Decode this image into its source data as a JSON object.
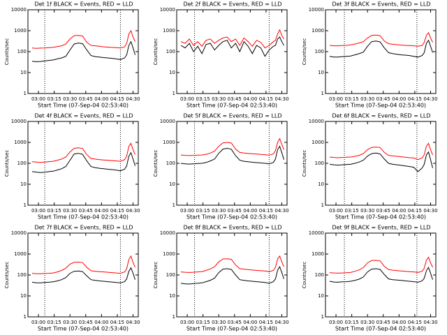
{
  "chart_data": [
    {
      "type": "line",
      "title": "Det 1f BLACK = Events, RED = LLD",
      "xlabel": "Start Time (07-Sep-04 02:53:40)",
      "ylabel": "Counts/sec",
      "x": [
        "02:54",
        "02:58",
        "03:02",
        "03:06",
        "03:10",
        "03:14",
        "03:18",
        "03:22",
        "03:26",
        "03:30",
        "03:34",
        "03:38",
        "03:42",
        "03:46",
        "03:50",
        "03:54",
        "03:58",
        "04:02",
        "04:06",
        "04:10",
        "04:14",
        "04:18",
        "04:22",
        "04:24",
        "04:26",
        "04:28",
        "04:30",
        "04:32"
      ],
      "series": [
        {
          "color": "#000000",
          "values": [
            35,
            33,
            34,
            36,
            38,
            40,
            45,
            50,
            60,
            120,
            230,
            260,
            240,
            120,
            65,
            58,
            55,
            52,
            50,
            48,
            45,
            42,
            50,
            70,
            200,
            300,
            150,
            70
          ]
        },
        {
          "color": "#ff0000",
          "values": [
            150,
            145,
            148,
            150,
            155,
            160,
            175,
            190,
            230,
            400,
            580,
            600,
            560,
            280,
            200,
            190,
            180,
            170,
            165,
            160,
            155,
            150,
            170,
            250,
            700,
            1000,
            500,
            300
          ]
        }
      ],
      "xlim": [
        "02:50",
        "04:35"
      ],
      "xticks": [
        "03:00",
        "03:15",
        "03:30",
        "03:45",
        "04:00",
        "04:15",
        "04:30"
      ],
      "ylim": [
        1,
        10000
      ],
      "yticks": [
        1,
        10,
        100,
        1000,
        10000
      ],
      "log": true,
      "markers": [
        "03:06",
        "04:18"
      ]
    },
    {
      "type": "line",
      "title": "Det 2f BLACK = Events, RED = LLD",
      "xlabel": "Start Time (07-Sep-04 02:53:40)",
      "ylabel": "Counts/sec",
      "x": [
        "02:54",
        "02:58",
        "03:02",
        "03:06",
        "03:10",
        "03:14",
        "03:18",
        "03:22",
        "03:26",
        "03:30",
        "03:34",
        "03:38",
        "03:42",
        "03:46",
        "03:50",
        "03:54",
        "03:58",
        "04:02",
        "04:06",
        "04:10",
        "04:14",
        "04:18",
        "04:22",
        "04:24",
        "04:26",
        "04:28",
        "04:30",
        "04:32"
      ],
      "series": [
        {
          "color": "#000000",
          "values": [
            200,
            150,
            250,
            100,
            180,
            80,
            220,
            250,
            120,
            200,
            300,
            350,
            150,
            250,
            100,
            300,
            180,
            80,
            200,
            150,
            60,
            120,
            180,
            200,
            400,
            500,
            300,
            200
          ]
        },
        {
          "color": "#ff0000",
          "values": [
            300,
            250,
            400,
            200,
            300,
            180,
            350,
            400,
            250,
            350,
            450,
            500,
            300,
            400,
            200,
            450,
            300,
            180,
            350,
            280,
            150,
            200,
            300,
            350,
            700,
            1100,
            600,
            400
          ]
        }
      ],
      "xlim": [
        "02:50",
        "04:35"
      ],
      "xticks": [
        "03:00",
        "03:15",
        "03:30",
        "03:45",
        "04:00",
        "04:15",
        "04:30"
      ],
      "ylim": [
        1,
        10000
      ],
      "yticks": [
        1,
        10,
        100,
        1000,
        10000
      ],
      "log": true,
      "markers": [
        "03:07",
        "04:18"
      ]
    },
    {
      "type": "line",
      "title": "Det 3f BLACK = Events, RED = LLD",
      "xlabel": "Start Time (07-Sep-04 02:53:40)",
      "ylabel": "Counts/sec",
      "x": [
        "02:54",
        "02:58",
        "03:02",
        "03:06",
        "03:10",
        "03:14",
        "03:18",
        "03:22",
        "03:26",
        "03:30",
        "03:34",
        "03:38",
        "03:42",
        "03:46",
        "03:50",
        "03:54",
        "03:58",
        "04:02",
        "04:06",
        "04:10",
        "04:14",
        "04:18",
        "04:22",
        "04:24",
        "04:26",
        "04:28",
        "04:30",
        "04:32"
      ],
      "series": [
        {
          "color": "#000000",
          "values": [
            60,
            55,
            55,
            58,
            60,
            62,
            70,
            80,
            95,
            180,
            300,
            320,
            290,
            150,
            90,
            80,
            75,
            70,
            68,
            65,
            60,
            55,
            65,
            90,
            250,
            350,
            180,
            90
          ]
        },
        {
          "color": "#ff0000",
          "values": [
            200,
            190,
            190,
            195,
            200,
            210,
            230,
            260,
            300,
            450,
            600,
            620,
            580,
            320,
            240,
            225,
            215,
            205,
            200,
            195,
            190,
            180,
            200,
            280,
            600,
            800,
            450,
            280
          ]
        }
      ],
      "xlim": [
        "02:50",
        "04:35"
      ],
      "xticks": [
        "03:00",
        "03:15",
        "03:30",
        "03:45",
        "04:00",
        "04:15",
        "04:30"
      ],
      "ylim": [
        1,
        10000
      ],
      "yticks": [
        1,
        10,
        100,
        1000,
        10000
      ],
      "log": true,
      "markers": [
        "03:08",
        "04:17"
      ]
    },
    {
      "type": "line",
      "title": "Det 4f BLACK = Events, RED = LLD",
      "xlabel": "Start Time (07-Sep-04 02:53:40)",
      "ylabel": "Counts/sec",
      "x": [
        "02:54",
        "02:58",
        "03:02",
        "03:06",
        "03:10",
        "03:14",
        "03:18",
        "03:22",
        "03:26",
        "03:30",
        "03:34",
        "03:38",
        "03:42",
        "03:46",
        "03:50",
        "03:54",
        "03:58",
        "04:02",
        "04:06",
        "04:10",
        "04:14",
        "04:18",
        "04:22",
        "04:24",
        "04:26",
        "04:28",
        "04:30",
        "04:32"
      ],
      "series": [
        {
          "color": "#000000",
          "values": [
            40,
            38,
            36,
            38,
            40,
            42,
            48,
            55,
            70,
            140,
            280,
            300,
            270,
            130,
            70,
            62,
            58,
            55,
            52,
            50,
            47,
            44,
            52,
            75,
            220,
            320,
            160,
            75
          ]
        },
        {
          "color": "#ff0000",
          "values": [
            120,
            115,
            110,
            115,
            120,
            125,
            140,
            160,
            200,
            350,
            520,
            550,
            510,
            260,
            170,
            160,
            150,
            145,
            140,
            135,
            130,
            125,
            150,
            220,
            650,
            900,
            450,
            260
          ]
        }
      ],
      "xlim": [
        "02:50",
        "04:35"
      ],
      "xticks": [
        "03:00",
        "03:15",
        "03:30",
        "03:45",
        "04:00",
        "04:15",
        "04:30"
      ],
      "ylim": [
        1,
        10000
      ],
      "yticks": [
        1,
        10,
        100,
        1000,
        10000
      ],
      "log": true,
      "markers": [
        "03:06",
        "04:18"
      ]
    },
    {
      "type": "line",
      "title": "Det 5f BLACK = Events, RED = LLD",
      "xlabel": "Start Time (07-Sep-04 02:53:40)",
      "ylabel": "Counts/sec",
      "x": [
        "02:54",
        "02:58",
        "03:02",
        "03:06",
        "03:10",
        "03:14",
        "03:18",
        "03:22",
        "03:26",
        "03:30",
        "03:34",
        "03:38",
        "03:42",
        "03:46",
        "03:50",
        "03:54",
        "03:58",
        "04:02",
        "04:06",
        "04:10",
        "04:14",
        "04:18",
        "04:22",
        "04:24",
        "04:26",
        "04:28",
        "04:30",
        "04:32"
      ],
      "series": [
        {
          "color": "#000000",
          "values": [
            100,
            95,
            92,
            95,
            98,
            100,
            110,
            130,
            160,
            300,
            480,
            520,
            470,
            230,
            140,
            125,
            118,
            112,
            108,
            104,
            100,
            95,
            110,
            160,
            450,
            650,
            320,
            150
          ]
        },
        {
          "color": "#ff0000",
          "values": [
            250,
            240,
            235,
            240,
            245,
            250,
            270,
            310,
            380,
            650,
            950,
            1000,
            930,
            480,
            330,
            310,
            295,
            285,
            275,
            265,
            255,
            245,
            280,
            400,
            1000,
            1500,
            800,
            450
          ]
        }
      ],
      "xlim": [
        "02:50",
        "04:35"
      ],
      "xticks": [
        "03:00",
        "03:15",
        "03:30",
        "03:45",
        "04:00",
        "04:15",
        "04:30"
      ],
      "ylim": [
        1,
        10000
      ],
      "yticks": [
        1,
        10,
        100,
        1000,
        10000
      ],
      "log": true,
      "markers": [
        "03:07",
        "04:18"
      ]
    },
    {
      "type": "line",
      "title": "Det 6f BLACK = Events, RED = LLD",
      "xlabel": "Start Time (07-Sep-04 02:53:40)",
      "ylabel": "Counts/sec",
      "x": [
        "02:54",
        "02:58",
        "03:02",
        "03:06",
        "03:10",
        "03:14",
        "03:18",
        "03:22",
        "03:26",
        "03:30",
        "03:34",
        "03:38",
        "03:42",
        "03:46",
        "03:50",
        "03:54",
        "03:58",
        "04:02",
        "04:06",
        "04:10",
        "04:14",
        "04:18",
        "04:22",
        "04:24",
        "04:26",
        "04:28",
        "04:30",
        "04:32"
      ],
      "series": [
        {
          "color": "#000000",
          "values": [
            90,
            85,
            82,
            85,
            88,
            90,
            100,
            115,
            140,
            220,
            290,
            310,
            280,
            160,
            100,
            90,
            85,
            80,
            75,
            70,
            65,
            40,
            60,
            90,
            250,
            350,
            150,
            60
          ]
        },
        {
          "color": "#ff0000",
          "values": [
            200,
            190,
            185,
            190,
            195,
            200,
            215,
            240,
            290,
            450,
            580,
            600,
            570,
            330,
            240,
            225,
            215,
            205,
            195,
            185,
            180,
            150,
            180,
            260,
            650,
            900,
            450,
            250
          ]
        }
      ],
      "xlim": [
        "02:50",
        "04:35"
      ],
      "xticks": [
        "03:00",
        "03:15",
        "03:30",
        "03:45",
        "04:00",
        "04:15",
        "04:30"
      ],
      "ylim": [
        1,
        10000
      ],
      "yticks": [
        1,
        10,
        100,
        1000,
        10000
      ],
      "log": true,
      "markers": [
        "03:08",
        "04:17"
      ]
    },
    {
      "type": "line",
      "title": "Det 7f BLACK = Events, RED = LLD",
      "xlabel": "Start Time (07-Sep-04 02:53:40)",
      "ylabel": "Counts/sec",
      "x": [
        "02:54",
        "02:58",
        "03:02",
        "03:06",
        "03:10",
        "03:14",
        "03:18",
        "03:22",
        "03:26",
        "03:30",
        "03:34",
        "03:38",
        "03:42",
        "03:46",
        "03:50",
        "03:54",
        "03:58",
        "04:02",
        "04:06",
        "04:10",
        "04:14",
        "04:18",
        "04:22",
        "04:24",
        "04:26",
        "04:28",
        "04:30",
        "04:32"
      ],
      "series": [
        {
          "color": "#000000",
          "values": [
            45,
            42,
            42,
            44,
            45,
            47,
            52,
            60,
            75,
            120,
            150,
            155,
            145,
            90,
            60,
            55,
            52,
            50,
            48,
            46,
            44,
            42,
            48,
            65,
            150,
            220,
            120,
            60
          ]
        },
        {
          "color": "#ff0000",
          "values": [
            120,
            115,
            115,
            118,
            120,
            125,
            140,
            165,
            210,
            330,
            400,
            410,
            390,
            230,
            160,
            150,
            145,
            140,
            135,
            130,
            125,
            120,
            140,
            200,
            550,
            800,
            400,
            230
          ]
        }
      ],
      "xlim": [
        "02:50",
        "04:35"
      ],
      "xticks": [
        "03:00",
        "03:15",
        "03:30",
        "03:45",
        "04:00",
        "04:15",
        "04:30"
      ],
      "ylim": [
        1,
        10000
      ],
      "yticks": [
        1,
        10,
        100,
        1000,
        10000
      ],
      "log": true,
      "markers": [
        "03:06",
        "04:18"
      ]
    },
    {
      "type": "line",
      "title": "Det 8f BLACK = Events, RED = LLD",
      "xlabel": "Start Time (07-Sep-04 02:53:40)",
      "ylabel": "Counts/sec",
      "x": [
        "02:54",
        "02:58",
        "03:02",
        "03:06",
        "03:10",
        "03:14",
        "03:18",
        "03:22",
        "03:26",
        "03:30",
        "03:34",
        "03:38",
        "03:42",
        "03:46",
        "03:50",
        "03:54",
        "03:58",
        "04:02",
        "04:06",
        "04:10",
        "04:14",
        "04:18",
        "04:22",
        "04:24",
        "04:26",
        "04:28",
        "04:30",
        "04:32"
      ],
      "series": [
        {
          "color": "#000000",
          "values": [
            40,
            38,
            37,
            39,
            40,
            42,
            48,
            56,
            70,
            130,
            190,
            200,
            185,
            100,
            60,
            55,
            52,
            50,
            48,
            46,
            44,
            40,
            48,
            65,
            170,
            250,
            130,
            65
          ]
        },
        {
          "color": "#ff0000",
          "values": [
            140,
            135,
            132,
            135,
            140,
            145,
            165,
            195,
            250,
            420,
            580,
            600,
            560,
            300,
            200,
            190,
            180,
            172,
            165,
            160,
            155,
            145,
            165,
            230,
            580,
            800,
            420,
            250
          ]
        }
      ],
      "xlim": [
        "02:50",
        "04:35"
      ],
      "xticks": [
        "03:00",
        "03:15",
        "03:30",
        "03:45",
        "04:00",
        "04:15",
        "04:30"
      ],
      "ylim": [
        1,
        10000
      ],
      "yticks": [
        1,
        10,
        100,
        1000,
        10000
      ],
      "log": true,
      "markers": [
        "03:07",
        "04:18"
      ]
    },
    {
      "type": "line",
      "title": "Det 9f BLACK = Events, RED = LLD",
      "xlabel": "Start Time (07-Sep-04 02:53:40)",
      "ylabel": "Counts/sec",
      "x": [
        "02:54",
        "02:58",
        "03:02",
        "03:06",
        "03:10",
        "03:14",
        "03:18",
        "03:22",
        "03:26",
        "03:30",
        "03:34",
        "03:38",
        "03:42",
        "03:46",
        "03:50",
        "03:54",
        "03:58",
        "04:02",
        "04:06",
        "04:10",
        "04:14",
        "04:18",
        "04:22",
        "04:24",
        "04:26",
        "04:28",
        "04:30",
        "04:32"
      ],
      "series": [
        {
          "color": "#000000",
          "values": [
            50,
            46,
            45,
            47,
            48,
            50,
            55,
            63,
            80,
            140,
            190,
            200,
            185,
            105,
            65,
            60,
            57,
            55,
            52,
            50,
            48,
            45,
            52,
            70,
            160,
            230,
            120,
            60
          ]
        },
        {
          "color": "#ff0000",
          "values": [
            130,
            125,
            122,
            125,
            128,
            132,
            150,
            175,
            225,
            380,
            490,
            500,
            470,
            260,
            180,
            170,
            162,
            156,
            150,
            145,
            140,
            132,
            150,
            210,
            500,
            700,
            380,
            230
          ]
        }
      ],
      "xlim": [
        "02:50",
        "04:35"
      ],
      "xticks": [
        "03:00",
        "03:15",
        "03:30",
        "03:45",
        "04:00",
        "04:15",
        "04:30"
      ],
      "ylim": [
        1,
        10000
      ],
      "yticks": [
        1,
        10,
        100,
        1000,
        10000
      ],
      "log": true,
      "markers": [
        "03:08",
        "04:17"
      ]
    }
  ]
}
